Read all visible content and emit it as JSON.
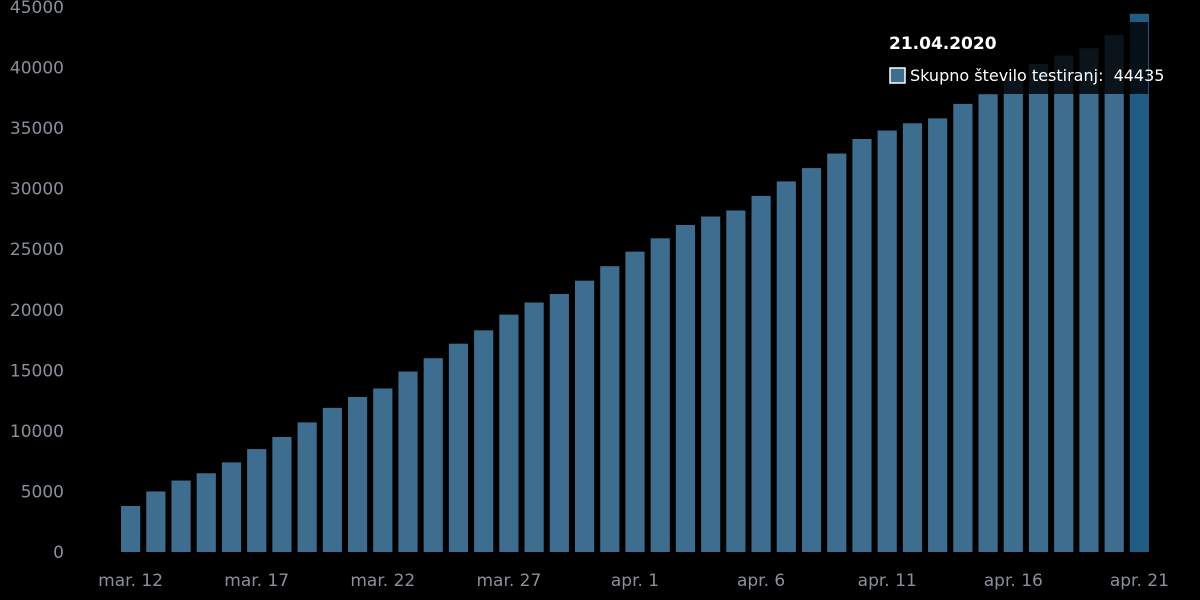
{
  "chart_data": {
    "type": "bar",
    "categories": [
      "mar. 12",
      "mar. 13",
      "mar. 14",
      "mar. 15",
      "mar. 16",
      "mar. 17",
      "mar. 18",
      "mar. 19",
      "mar. 20",
      "mar. 21",
      "mar. 22",
      "mar. 23",
      "mar. 24",
      "mar. 25",
      "mar. 26",
      "mar. 27",
      "mar. 28",
      "mar. 29",
      "mar. 30",
      "mar. 31",
      "apr. 1",
      "apr. 2",
      "apr. 3",
      "apr. 4",
      "apr. 5",
      "apr. 6",
      "apr. 7",
      "apr. 8",
      "apr. 9",
      "apr. 10",
      "apr. 11",
      "apr. 12",
      "apr. 13",
      "apr. 14",
      "apr. 15",
      "apr. 16",
      "apr. 17",
      "apr. 18",
      "apr. 19",
      "apr. 20",
      "apr. 21"
    ],
    "xtick_labels": [
      "mar. 12",
      "mar. 17",
      "mar. 22",
      "mar. 27",
      "apr. 1",
      "apr. 6",
      "apr. 11",
      "apr. 16",
      "apr. 21"
    ],
    "xtick_every": 5,
    "series": [
      {
        "name": "Skupno število testiranj",
        "values": [
          3800,
          5000,
          5900,
          6500,
          7400,
          8500,
          9500,
          10700,
          11900,
          12800,
          13500,
          14900,
          16000,
          17200,
          18300,
          19600,
          20600,
          21300,
          22400,
          23600,
          24800,
          25900,
          27000,
          27700,
          28200,
          29400,
          30600,
          31700,
          32900,
          34100,
          34800,
          35400,
          35800,
          37000,
          37800,
          39200,
          40300,
          41000,
          41600,
          42700,
          44435
        ],
        "color": "#3d6e8f"
      }
    ],
    "yticks": [
      0,
      5000,
      10000,
      15000,
      20000,
      25000,
      30000,
      35000,
      40000,
      45000
    ],
    "ylim": [
      0,
      45000
    ],
    "grid": false,
    "legend": "none",
    "tooltip": {
      "title": "21.04.2020",
      "series_label": "Skupno število testiranj:",
      "value": "44435",
      "highlight_category": "apr. 21",
      "highlight_color": "#1f5d85",
      "swatch_color": "#3d6e8f"
    }
  }
}
